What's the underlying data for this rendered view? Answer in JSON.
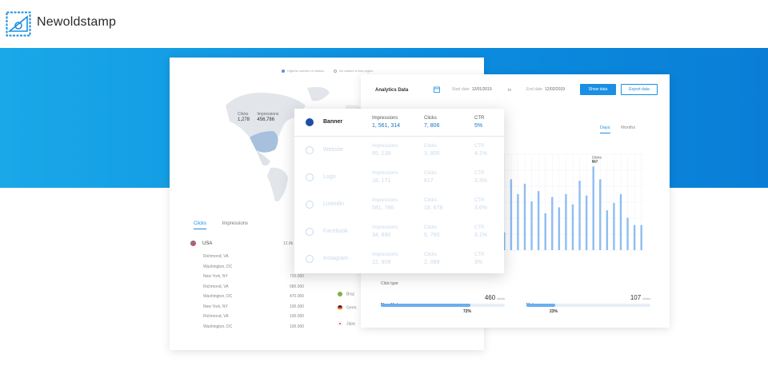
{
  "header": {
    "brand": "Newoldstamp"
  },
  "map": {
    "legend": [
      "Highest number of visitors",
      "No visitors in this region"
    ],
    "tooltip": {
      "clicks_label": "Clicks",
      "clicks_value": "1,278",
      "impressions_label": "Impressions",
      "impressions_value": "456,786"
    }
  },
  "left_panel": {
    "tabs": [
      "Clicks",
      "Impressions"
    ],
    "country": "USA",
    "country_total": "12.8k",
    "cities": [
      "Richmond, VA",
      "Washington, DC",
      "New York, NY",
      "Richmond, VA",
      "Washington, DC",
      "New York, NY",
      "Richmond, VA",
      "Washington, DC"
    ],
    "values": [
      "",
      "",
      "720.000",
      "680.000",
      "470.000",
      "100.000",
      "100.000",
      "100.000"
    ],
    "other_countries": [
      {
        "name": "Braz",
        "color": "#7cb342"
      },
      {
        "name": "Germ",
        "color": "#d32f2f"
      },
      {
        "name": "Japa",
        "color": "#e53935"
      }
    ]
  },
  "analytics": {
    "title": "Analytics Data",
    "start_label": "Start date",
    "start_value": "12/01/2019",
    "to": "to",
    "end_label": "End date",
    "end_value": "12/02/2019",
    "show_button": "Show data",
    "export_button": "Export data",
    "tabs": [
      "Days",
      "Months"
    ],
    "click_type_label": "Click type",
    "click_types": [
      {
        "name": "Non-Unique",
        "count": "460",
        "unit": "clicks",
        "percent": "72%",
        "fraction": 0.72
      },
      {
        "name": "Unique",
        "count": "107",
        "unit": "clicks",
        "percent": "23%",
        "fraction": 0.23
      }
    ]
  },
  "popup": {
    "headers": {
      "impressions": "Impressions",
      "clicks": "Clicks",
      "ctr": "CTR"
    },
    "rows": [
      {
        "name": "Banner",
        "impressions": "1, 561, 314",
        "clicks": "7, 806",
        "ctr": "5%",
        "icon": "banner-icon"
      },
      {
        "name": "Website",
        "impressions": "95, 138",
        "clicks": "3, 805",
        "ctr": "4.1%",
        "icon": "globe-icon"
      },
      {
        "name": "Logo",
        "impressions": "18, 171",
        "clicks": "617",
        "ctr": "3.3%",
        "icon": "logo-icon"
      },
      {
        "name": "Linkedin",
        "impressions": "581, 786",
        "clicks": "18, 678",
        "ctr": "3.6%",
        "icon": "linkedin-icon"
      },
      {
        "name": "Facebook",
        "impressions": "34, 890",
        "clicks": "5, 780",
        "ctr": "3.1%",
        "icon": "facebook-icon"
      },
      {
        "name": "Instagram",
        "impressions": "12, 908",
        "clicks": "2, 098",
        "ctr": "3%",
        "icon": "instagram-icon"
      }
    ]
  },
  "chart_data": {
    "type": "bar",
    "annotation": {
      "label": "Clicks",
      "value": "567"
    },
    "values": [
      120,
      480,
      380,
      450,
      330,
      400,
      250,
      360,
      290,
      380,
      310,
      470,
      370,
      567,
      480,
      270,
      320,
      380,
      220,
      170,
      170
    ],
    "ylim": [
      0,
      650
    ],
    "grid": true
  }
}
